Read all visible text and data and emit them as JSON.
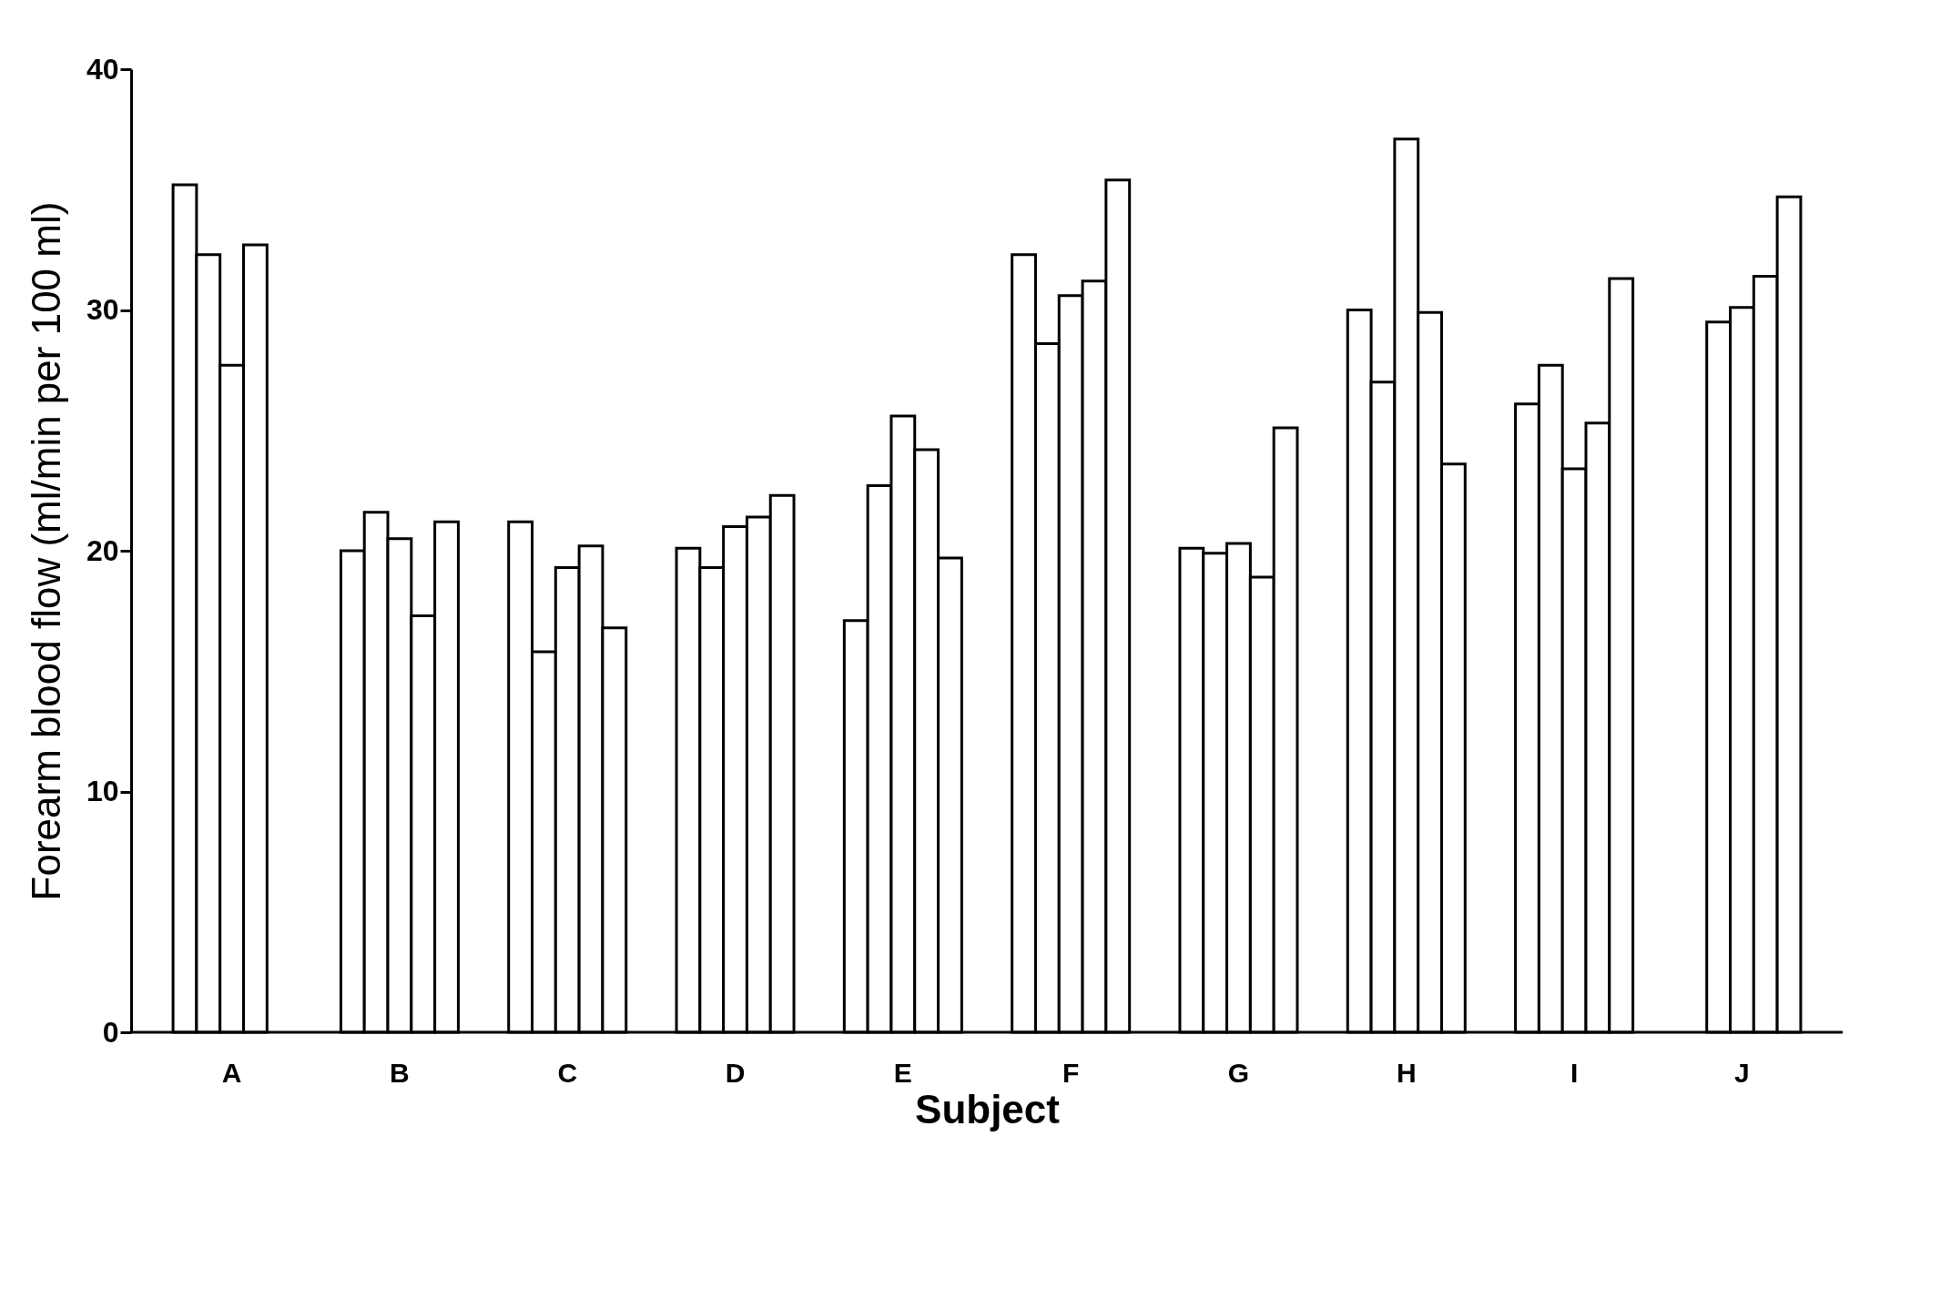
{
  "chart_data": {
    "type": "bar",
    "xlabel": "Subject",
    "ylabel": "Forearm blood flow (ml/min per 100 ml)",
    "categories": [
      "A",
      "B",
      "C",
      "D",
      "E",
      "F",
      "G",
      "H",
      "I",
      "J"
    ],
    "ylim": [
      0,
      40
    ],
    "yticks": [
      0,
      10,
      20,
      30,
      40
    ],
    "series": [
      {
        "color": "#ffffff",
        "values": [
          35.2,
          20.0,
          21.2,
          20.1,
          17.1,
          32.3,
          20.1,
          30.0,
          26.1,
          null
        ]
      },
      {
        "color": "#ffffff",
        "values": [
          32.3,
          21.6,
          15.8,
          19.3,
          22.7,
          28.6,
          19.9,
          27.0,
          27.7,
          29.5
        ]
      },
      {
        "color": "#ffffff",
        "values": [
          27.7,
          20.5,
          19.3,
          21.0,
          25.6,
          30.6,
          20.3,
          37.1,
          23.4,
          30.1
        ]
      },
      {
        "color": "#ffffff",
        "values": [
          32.7,
          17.3,
          20.2,
          21.4,
          24.2,
          31.2,
          18.9,
          29.9,
          25.3,
          31.4
        ]
      },
      {
        "color": "#ffffff",
        "values": [
          null,
          21.2,
          16.8,
          22.3,
          19.7,
          35.4,
          25.1,
          23.6,
          31.3,
          34.7
        ]
      }
    ]
  }
}
